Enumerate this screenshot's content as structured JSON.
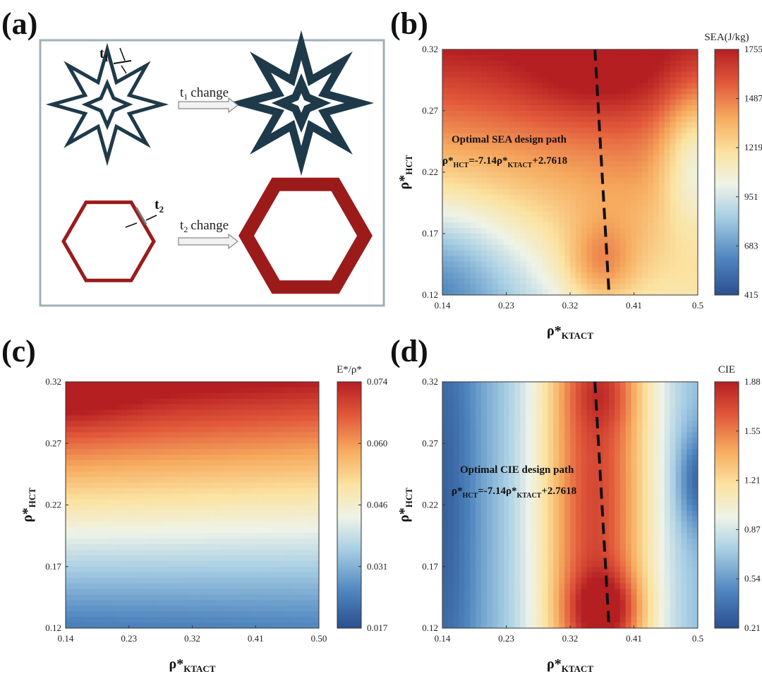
{
  "panel_labels": [
    "(a)",
    "(b)",
    "(c)",
    "(d)"
  ],
  "schematic": {
    "t1_label": "t",
    "t1_sub": "1",
    "t2_label": "t",
    "t2_sub": "2",
    "arrow1_label": "change",
    "arrow2_label": "change",
    "star_color": "#1e3a4a",
    "hex_color": "#9b1b1b"
  },
  "chart_data": [
    {
      "type": "heatmap",
      "panel": "(b)",
      "colorbar_title": "SEA(J/kg)",
      "colorbar_ticks": [
        "1755",
        "1487",
        "1219",
        "951",
        "683",
        "415"
      ],
      "x_ticks": [
        "0.14",
        "0.23",
        "0.32",
        "0.41",
        "0.5"
      ],
      "y_ticks": [
        "0.32",
        "0.27",
        "0.22",
        "0.17",
        "0.12"
      ],
      "xlim": [
        0.14,
        0.5
      ],
      "ylim": [
        0.12,
        0.32
      ],
      "zlim": [
        415,
        1755
      ],
      "xlabel": "ρ*",
      "xlabel_sub": "KTACT",
      "ylabel": "ρ*",
      "ylabel_sub": "HCT",
      "annotation_title": "Optimal SEA design path",
      "annotation_eq": [
        "ρ*",
        "HCT",
        "=-7.14ρ*",
        "KTACT",
        "+2.7618"
      ],
      "path_line": {
        "x": [
          0.355,
          0.375
        ],
        "y": [
          0.32,
          0.12
        ]
      },
      "grid": false
    },
    {
      "type": "heatmap",
      "panel": "(c)",
      "colorbar_title": "E*/ρ*",
      "colorbar_ticks": [
        "0.074",
        "0.060",
        "0.046",
        "0.031",
        "0.017"
      ],
      "x_ticks": [
        "0.14",
        "0.23",
        "0.32",
        "0.41",
        "0.50"
      ],
      "y_ticks": [
        "0.32",
        "0.27",
        "0.22",
        "0.17",
        "0.12"
      ],
      "xlim": [
        0.14,
        0.5
      ],
      "ylim": [
        0.12,
        0.32
      ],
      "zlim": [
        0.017,
        0.074
      ],
      "xlabel": "ρ*",
      "xlabel_sub": "KTACT",
      "ylabel": "ρ*",
      "ylabel_sub": "HCT",
      "grid": false
    },
    {
      "type": "heatmap",
      "panel": "(d)",
      "colorbar_title": "CIE",
      "colorbar_ticks": [
        "1.88",
        "1.55",
        "1.21",
        "0.87",
        "0.54",
        "0.21"
      ],
      "x_ticks": [
        "0.14",
        "0.23",
        "0.32",
        "0.41",
        "0.5"
      ],
      "y_ticks": [
        "0.32",
        "0.27",
        "0.22",
        "0.17",
        "0.12"
      ],
      "xlim": [
        0.14,
        0.5
      ],
      "ylim": [
        0.12,
        0.32
      ],
      "zlim": [
        0.21,
        1.88
      ],
      "xlabel": "ρ*",
      "xlabel_sub": "KTACT",
      "ylabel": "ρ*",
      "ylabel_sub": "HCT",
      "annotation_title": "Optimal CIE design path",
      "annotation_eq": [
        "ρ*",
        "HCT",
        "=-7.14ρ*",
        "KTACT",
        "+2.7618"
      ],
      "path_line": {
        "x": [
          0.355,
          0.375
        ],
        "y": [
          0.32,
          0.12
        ]
      },
      "grid": false
    }
  ]
}
